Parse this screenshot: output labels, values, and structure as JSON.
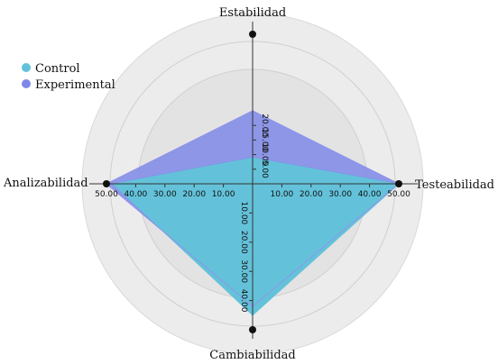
{
  "chart_data": {
    "type": "radar",
    "axes": [
      "Estabilidad",
      "Testeabilidad",
      "Cambiabilidad",
      "Analizabilidad"
    ],
    "scale": {
      "min": 0,
      "max": 50,
      "step": 10
    },
    "series": [
      {
        "name": "Control",
        "color": "#63c2d9",
        "values": [
          9,
          50,
          45,
          48
        ]
      },
      {
        "name": "Experimental",
        "color": "#7f88e8",
        "values": [
          25,
          50,
          42,
          50
        ]
      }
    ],
    "ticks": {
      "top": [
        "5.00",
        "10.00",
        "15.00",
        "20.00"
      ],
      "right": [
        "10.00",
        "20.00",
        "30.00",
        "40.00",
        "50.00"
      ],
      "left": [
        "10.00",
        "20.00",
        "30.00",
        "40.00",
        "50.00"
      ],
      "bottom": [
        "10.00",
        "20.00",
        "30.00",
        "40.00"
      ]
    },
    "legend_position": "top-left"
  }
}
